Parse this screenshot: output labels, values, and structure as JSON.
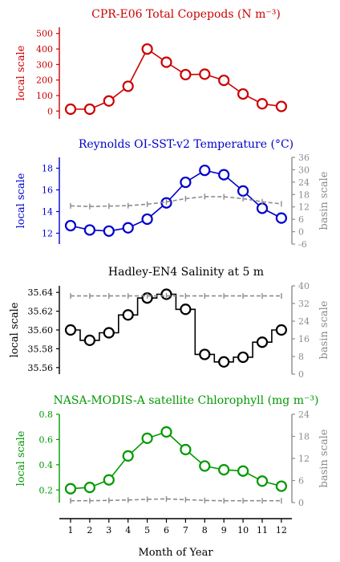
{
  "xaxis": {
    "label": "Month of Year",
    "ticks": [
      1,
      2,
      3,
      4,
      5,
      6,
      7,
      8,
      9,
      10,
      11,
      12
    ]
  },
  "chart_data": [
    {
      "type": "line",
      "title": "CPR-E06 Total Copepods (N m⁻³)",
      "ylabel": "local scale",
      "color": "#cc0000",
      "ylim": [
        -50,
        540
      ],
      "yticks": [
        0,
        100,
        200,
        300,
        400,
        500
      ],
      "x": [
        1,
        2,
        3,
        4,
        5,
        6,
        7,
        8,
        9,
        10,
        11,
        12
      ],
      "series": [
        {
          "values": [
            12,
            12,
            65,
            160,
            400,
            315,
            235,
            238,
            198,
            110,
            47,
            30
          ]
        }
      ]
    },
    {
      "type": "line",
      "title": "Reynolds OI-SST-v2 Temperature (°C)",
      "ylabel": "local scale",
      "ylabel2": "basin scale",
      "color": "#0000cc",
      "ylim": [
        11,
        19
      ],
      "yticks": [
        12,
        14,
        16,
        18
      ],
      "y2lim": [
        -6,
        36
      ],
      "y2ticks": [
        -6,
        0,
        6,
        12,
        18,
        24,
        30,
        36
      ],
      "x": [
        1,
        2,
        3,
        4,
        5,
        6,
        7,
        8,
        9,
        10,
        11,
        12
      ],
      "series": [
        {
          "values": [
            12.7,
            12.3,
            12.2,
            12.5,
            13.3,
            14.8,
            16.7,
            17.8,
            17.4,
            15.9,
            14.3,
            13.4
          ]
        },
        {
          "axis": "basin",
          "style": "dashed",
          "values": [
            12.5,
            12.2,
            12.4,
            12.6,
            13.3,
            14.4,
            16.0,
            17.0,
            16.9,
            16.0,
            14.5,
            13.5
          ]
        }
      ]
    },
    {
      "type": "line",
      "title": "Hadley-EN4 Salinity at 5 m",
      "ylabel": "local scale",
      "ylabel2": "basin scale",
      "color": "#000000",
      "ylim": [
        35.553,
        35.647
      ],
      "yticks": [
        35.56,
        35.58,
        35.6,
        35.62,
        35.64
      ],
      "y2lim": [
        0,
        40
      ],
      "y2ticks": [
        0,
        8,
        16,
        24,
        32,
        40
      ],
      "x": [
        1,
        2,
        3,
        4,
        5,
        6,
        7,
        8,
        9,
        10,
        11,
        12
      ],
      "series": [
        {
          "values": [
            35.6,
            35.589,
            35.597,
            35.616,
            35.634,
            35.638,
            35.622,
            35.574,
            35.566,
            35.571,
            35.587,
            35.6
          ]
        },
        {
          "axis": "basin",
          "style": "dashed",
          "values": [
            35.4,
            35.4,
            35.4,
            35.4,
            35.4,
            35.4,
            35.4,
            35.4,
            35.4,
            35.4,
            35.4,
            35.4
          ]
        }
      ]
    },
    {
      "type": "line",
      "title": "NASA-MODIS-A satellite Chlorophyll (mg m⁻³)",
      "ylabel": "local scale",
      "ylabel2": "basin scale",
      "color": "#009900",
      "ylim": [
        0.1,
        0.8
      ],
      "yticks": [
        0.2,
        0.4,
        0.6,
        0.8
      ],
      "y2lim": [
        0,
        24
      ],
      "y2ticks": [
        0,
        6,
        12,
        18,
        24
      ],
      "x": [
        1,
        2,
        3,
        4,
        5,
        6,
        7,
        8,
        9,
        10,
        11,
        12
      ],
      "series": [
        {
          "values": [
            0.21,
            0.22,
            0.28,
            0.47,
            0.61,
            0.66,
            0.52,
            0.39,
            0.36,
            0.35,
            0.27,
            0.23
          ]
        },
        {
          "axis": "basin",
          "style": "dashed",
          "values": [
            0.5,
            0.5,
            0.6,
            0.7,
            0.9,
            1.0,
            0.8,
            0.6,
            0.5,
            0.5,
            0.5,
            0.5
          ]
        }
      ]
    }
  ]
}
